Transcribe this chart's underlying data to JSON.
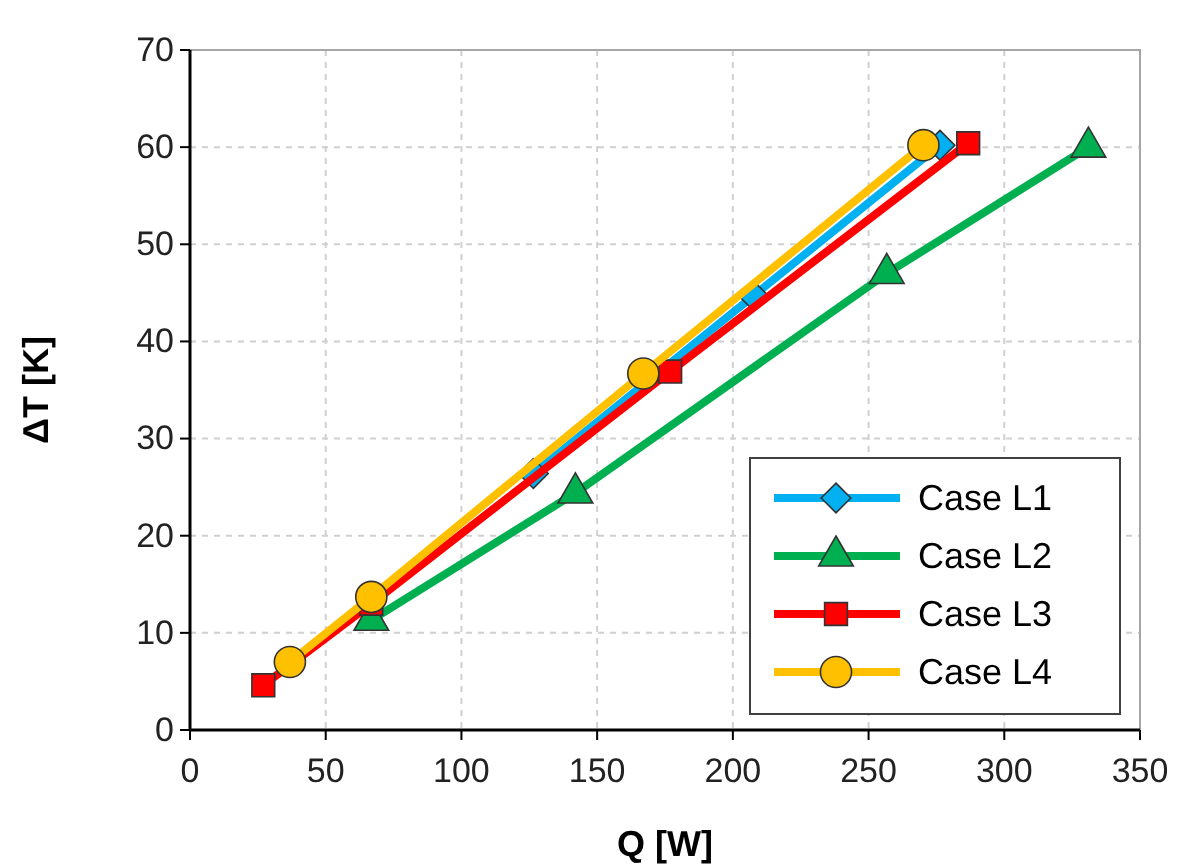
{
  "chart_data": {
    "type": "line",
    "xlabel": "Q [W]",
    "ylabel": "ΔT [K]",
    "xlim": [
      0,
      350
    ],
    "ylim": [
      0,
      70
    ],
    "xticks": [
      0,
      50,
      100,
      150,
      200,
      250,
      300,
      350
    ],
    "yticks": [
      0,
      10,
      20,
      30,
      40,
      50,
      60,
      70
    ],
    "grid": true,
    "legend": "bottom right",
    "series": [
      {
        "name": "Case L1",
        "color": "#00b0f0",
        "marker": "diamond",
        "x": [
          126.5,
          207.6,
          276.3
        ],
        "values": [
          26.4,
          44.7,
          60.2
        ]
      },
      {
        "name": "Case L2",
        "color": "#00b050",
        "marker": "triangle",
        "x": [
          66.8,
          142,
          256.7,
          331
        ],
        "values": [
          11.3,
          24.4,
          47,
          60
        ]
      },
      {
        "name": "Case L3",
        "color": "#ff0000",
        "marker": "square",
        "x": [
          27,
          66.8,
          176.9,
          286.7
        ],
        "values": [
          4.6,
          13,
          36.9,
          60.4
        ]
      },
      {
        "name": "Case L4",
        "color": "#ffc000",
        "marker": "circle",
        "x": [
          36.8,
          66.8,
          167,
          270.2
        ],
        "values": [
          7,
          13.7,
          36.7,
          60.2
        ]
      }
    ]
  }
}
